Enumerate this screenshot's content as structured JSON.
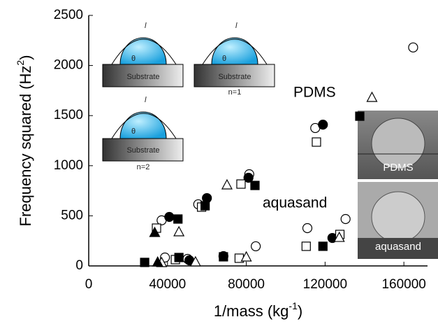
{
  "chart_data": {
    "type": "scatter",
    "x_label": {
      "text": "1/mass (kg",
      "sup": "-1",
      "end": ")"
    },
    "y_label": {
      "text": "Frequency squared (Hz",
      "sup": "2",
      "end": ")"
    },
    "xlim": [
      0,
      172000
    ],
    "ylim": [
      0,
      2500
    ],
    "xticks": [
      0,
      40000,
      80000,
      120000,
      160000
    ],
    "yticks": [
      0,
      500,
      1000,
      1500,
      2000,
      2500
    ],
    "series": [
      {
        "marker": "circle",
        "filled": false,
        "x": [
          37000,
          55600,
          81500,
          115000,
          111000,
          130400,
          84800,
          38700,
          50200,
          164700
        ],
        "values": [
          455,
          615,
          915,
          1376,
          377,
          468,
          196,
          84,
          70,
          2180
        ]
      },
      {
        "marker": "circle",
        "filled": true,
        "x": [
          40900,
          60000,
          81100,
          118900,
          123700,
          68400,
          51100
        ],
        "values": [
          489,
          677,
          880,
          1410,
          279,
          98,
          56
        ]
      },
      {
        "marker": "square",
        "filled": false,
        "x": [
          34400,
          57300,
          77300,
          115600,
          110400,
          127500,
          44000,
          76400
        ],
        "values": [
          377,
          587,
          817,
          1236,
          196,
          314,
          63,
          77
        ]
      },
      {
        "marker": "square",
        "filled": true,
        "x": [
          45300,
          59100,
          84400,
          137600,
          118900,
          28400,
          45800,
          68400
        ],
        "values": [
          468,
          600,
          803,
          1494,
          196,
          35,
          84,
          91
        ]
      },
      {
        "marker": "triangle",
        "filled": false,
        "x": [
          70200,
          45800,
          143800,
          127200,
          80000,
          54200,
          37000
        ],
        "values": [
          810,
          342,
          1683,
          286,
          91,
          42,
          35
        ]
      },
      {
        "marker": "triangle",
        "filled": true,
        "x": [
          33500,
          35000
        ],
        "values": [
          335,
          40
        ]
      }
    ],
    "annotations": [
      "PDMS",
      "aquasand"
    ]
  },
  "insets": {
    "substrate": "Substrate",
    "length": "l",
    "angle": "θ",
    "mode1": "n=1",
    "mode2": "n=2"
  },
  "photos": [
    "PDMS",
    "aquasand"
  ]
}
